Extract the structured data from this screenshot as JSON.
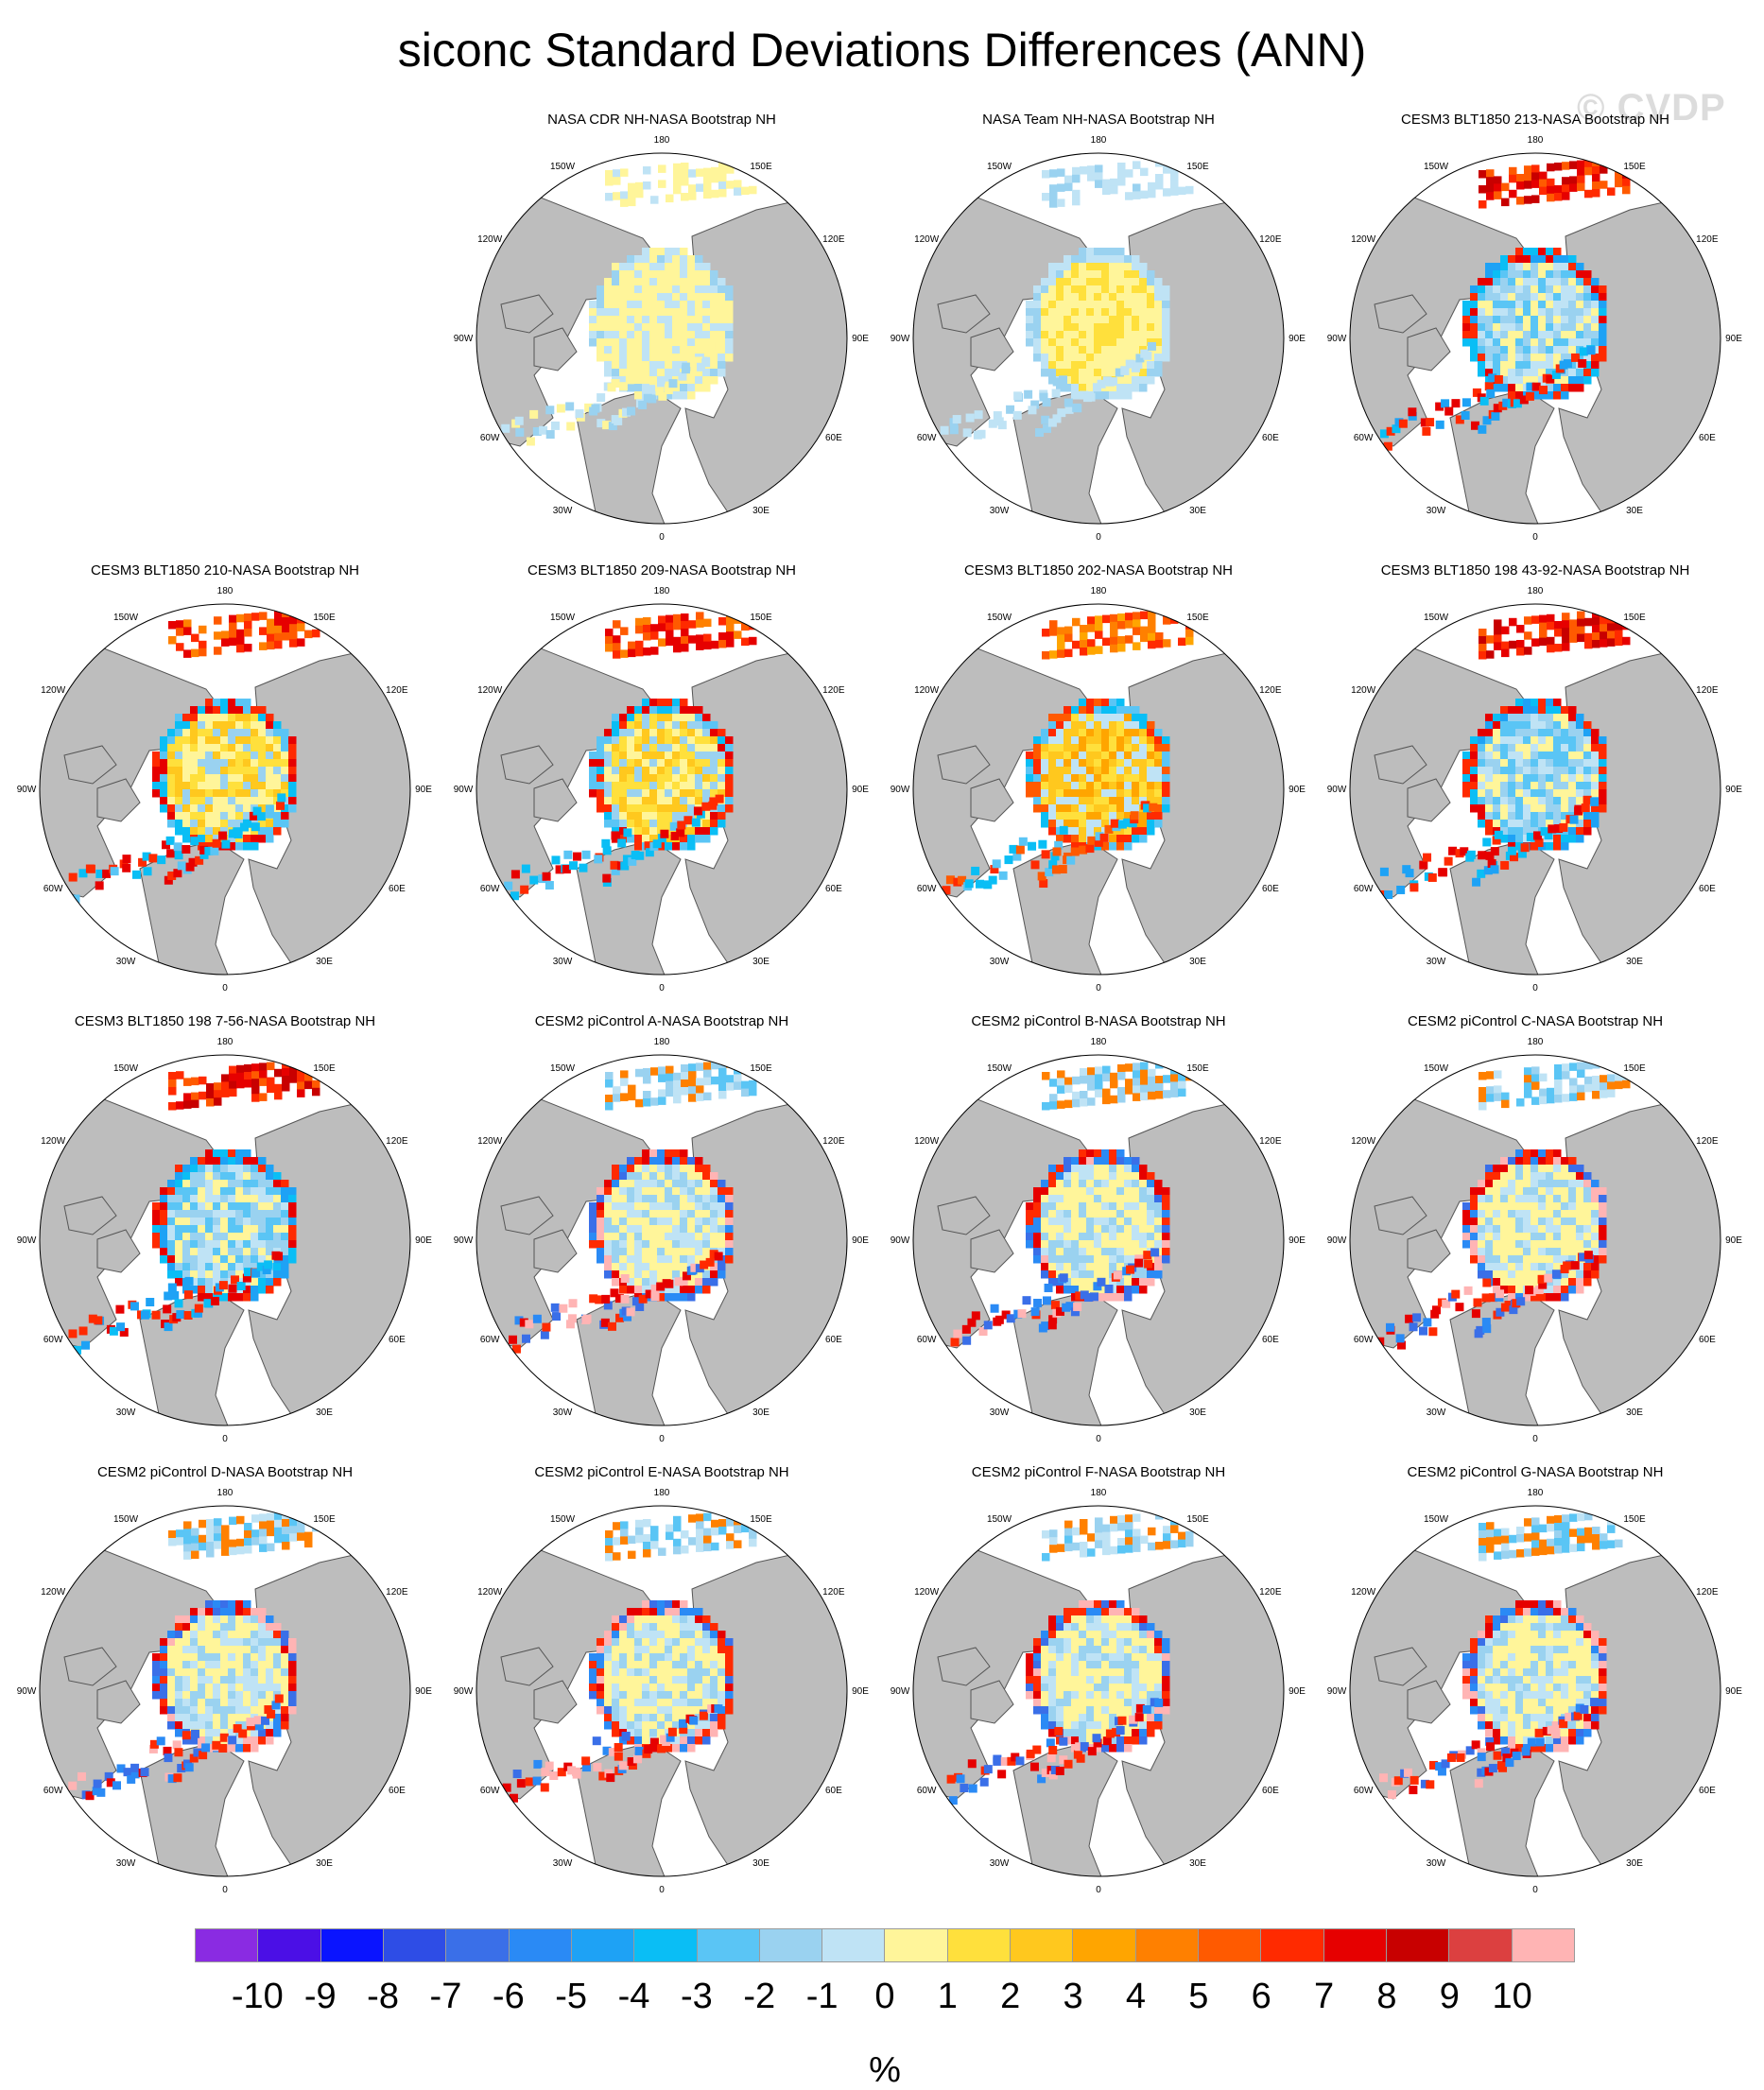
{
  "title": "siconc Standard Deviations Differences (ANN)",
  "watermark": "© CVDP",
  "map_labels": {
    "top": "180",
    "bottom": "0",
    "left": "90W",
    "right": "90E",
    "upper_left_outer": "120W",
    "upper_left_inner": "150W",
    "upper_right_inner": "150E",
    "upper_right_outer": "120E",
    "lower_left_outer": "60W",
    "lower_left_inner": "30W",
    "lower_right_inner": "30E",
    "lower_right_outer": "60E"
  },
  "panels": [
    {
      "title": "NASA CDR NH-NASA Bootstrap NH",
      "pattern": "obs_cdr"
    },
    {
      "title": "NASA Team NH-NASA Bootstrap NH",
      "pattern": "obs_team"
    },
    {
      "title": "CESM3 BLT1850 213-NASA Bootstrap NH",
      "pattern": "cesm3_blue"
    },
    {
      "title": "CESM3 BLT1850 210-NASA Bootstrap NH",
      "pattern": "cesm3_yellow"
    },
    {
      "title": "CESM3 BLT1850 209-NASA Bootstrap NH",
      "pattern": "cesm3_yellow"
    },
    {
      "title": "CESM3 BLT1850 202-NASA Bootstrap NH",
      "pattern": "cesm3_orange"
    },
    {
      "title": "CESM3 BLT1850 198 43-92-NASA Bootstrap NH",
      "pattern": "cesm3_blue"
    },
    {
      "title": "CESM3 BLT1850 198 7-56-NASA Bootstrap NH",
      "pattern": "cesm3_blue"
    },
    {
      "title": "CESM2 piControl A-NASA Bootstrap NH",
      "pattern": "cesm2"
    },
    {
      "title": "CESM2 piControl B-NASA Bootstrap NH",
      "pattern": "cesm2"
    },
    {
      "title": "CESM2 piControl C-NASA Bootstrap NH",
      "pattern": "cesm2"
    },
    {
      "title": "CESM2 piControl D-NASA Bootstrap NH",
      "pattern": "cesm2"
    },
    {
      "title": "CESM2 piControl E-NASA Bootstrap NH",
      "pattern": "cesm2"
    },
    {
      "title": "CESM2 piControl F-NASA Bootstrap NH",
      "pattern": "cesm2"
    },
    {
      "title": "CESM2 piControl G-NASA Bootstrap NH",
      "pattern": "cesm2"
    }
  ],
  "colorbar": {
    "ticks": [
      "-10",
      "-9",
      "-8",
      "-7",
      "-6",
      "-5",
      "-4",
      "-3",
      "-2",
      "-1",
      "0",
      "1",
      "2",
      "3",
      "4",
      "5",
      "6",
      "7",
      "8",
      "9",
      "10"
    ],
    "colors": [
      "#8a2be2",
      "#4b0fe6",
      "#0a14ff",
      "#2e4de6",
      "#3a6fe8",
      "#2a8af5",
      "#1ea2f5",
      "#0abef5",
      "#5ac5f5",
      "#9ad2f0",
      "#bfe3f5",
      "#fff59a",
      "#ffe03c",
      "#ffc81e",
      "#ffa500",
      "#ff8000",
      "#ff5a00",
      "#ff2a00",
      "#e60000",
      "#c80000",
      "#dc4040",
      "#ffb4b4"
    ],
    "units": "%"
  },
  "colors": {
    "land": "#bdbdbd",
    "ocean": "#ffffff",
    "coast": "#555555"
  }
}
